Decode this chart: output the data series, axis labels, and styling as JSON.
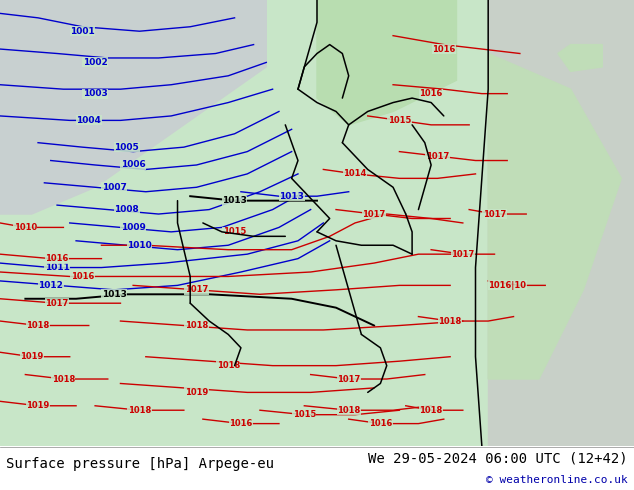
{
  "title_left": "Surface pressure [hPa] Arpege-eu",
  "title_right": "We 29-05-2024 06:00 UTC (12+42)",
  "copyright": "© weatheronline.co.uk",
  "bg_color": "#c8e6c8",
  "land_color": "#c8e6c8",
  "sea_color": "#d0d8d0",
  "blue_isobar_color": "#0000cc",
  "red_isobar_color": "#cc0000",
  "black_isobar_color": "#000000",
  "title_fontsize": 10,
  "copyright_fontsize": 8,
  "bottom_bar_color": "#ffffff",
  "figsize": [
    6.34,
    4.9
  ],
  "dpi": 100
}
